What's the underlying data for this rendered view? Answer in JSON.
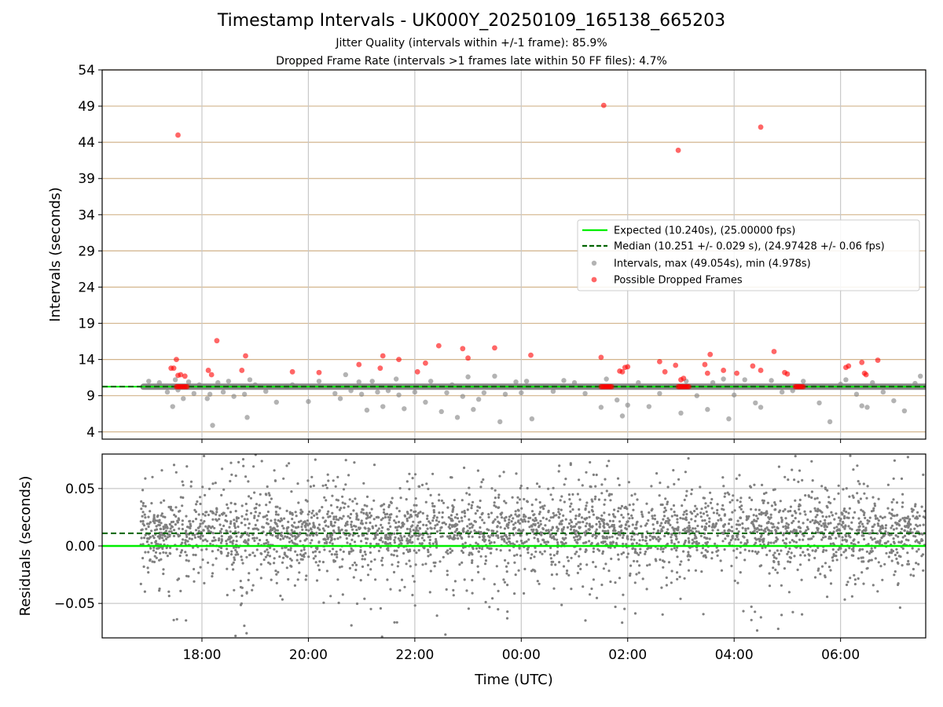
{
  "title": "Timestamp Intervals - UK000Y_20250109_165138_665203",
  "subtitle_1": "Jitter Quality (intervals within +/-1 frame): 85.9%",
  "subtitle_2": "Dropped Frame Rate (intervals >1 frames late within 50 FF files): 4.7%",
  "colors": {
    "expected": "#00ee00",
    "median": "#006400",
    "intervals": "#808080",
    "dropped": "#ff0000",
    "hgrid": "#d2b48c",
    "vgrid": "#c8c8c8"
  },
  "chart_data": [
    {
      "type": "scatter",
      "ylabel": "Intervals (seconds)",
      "xlabel": "",
      "ylim": [
        3,
        54
      ],
      "yticks": [
        4,
        9,
        14,
        19,
        24,
        29,
        34,
        39,
        44,
        49,
        54
      ],
      "xlim_hours": [
        16.125,
        31.6
      ],
      "xticks": [
        {
          "hour": 18,
          "label": "18:00"
        },
        {
          "hour": 20,
          "label": "20:00"
        },
        {
          "hour": 22,
          "label": "22:00"
        },
        {
          "hour": 24,
          "label": "00:00"
        },
        {
          "hour": 26,
          "label": "02:00"
        },
        {
          "hour": 28,
          "label": "04:00"
        },
        {
          "hour": 30,
          "label": "06:00"
        }
      ],
      "grid": true,
      "legend_position": "center-right",
      "legend": [
        {
          "label": "Expected (10.240s), (25.00000 fps)",
          "kind": "line-solid"
        },
        {
          "label": "Median (10.251 +/- 0.029 s), (24.97428 +/- 0.06 fps)",
          "kind": "line-dashed"
        },
        {
          "label": "Intervals, max (49.054s), min (4.978s)",
          "kind": "marker-gray"
        },
        {
          "label": "Possible Dropped Frames",
          "kind": "marker-red"
        }
      ],
      "expected": 10.24,
      "median": 10.251,
      "series": [
        {
          "name": "Intervals, max (49.054s), min (4.978s)",
          "x": [
            17.0,
            17.2,
            17.35,
            17.45,
            17.5,
            17.55,
            17.65,
            17.75,
            17.85,
            17.95,
            18.05,
            18.1,
            18.15,
            18.2,
            18.3,
            18.4,
            18.5,
            18.6,
            18.8,
            18.85,
            18.9,
            19.0,
            19.2,
            19.4,
            19.6,
            19.7,
            20.0,
            20.2,
            20.5,
            20.6,
            20.7,
            20.8,
            20.95,
            21.0,
            21.1,
            21.2,
            21.3,
            21.4,
            21.5,
            21.65,
            21.7,
            21.8,
            22.0,
            22.2,
            22.3,
            22.5,
            22.6,
            22.7,
            22.8,
            22.9,
            23.0,
            23.1,
            23.2,
            23.3,
            23.5,
            23.6,
            23.7,
            23.9,
            24.0,
            24.1,
            24.2,
            24.4,
            24.6,
            24.8,
            25.0,
            25.2,
            25.5,
            25.6,
            25.8,
            25.9,
            26.0,
            26.2,
            26.4,
            26.6,
            26.8,
            27.0,
            27.1,
            27.3,
            27.5,
            27.6,
            27.8,
            27.9,
            28.0,
            28.2,
            28.4,
            28.5,
            28.7,
            28.9,
            29.1,
            29.3,
            29.5,
            29.6,
            29.8,
            30.0,
            30.1,
            30.3,
            30.4,
            30.5,
            30.6,
            30.8,
            31.0,
            31.2,
            31.4,
            31.5
          ],
          "y": [
            11.0,
            10.8,
            9.5,
            7.5,
            11.2,
            9.8,
            8.6,
            10.9,
            9.3,
            10.5,
            10.2,
            8.6,
            9.2,
            4.9,
            10.8,
            9.5,
            11.0,
            8.9,
            9.2,
            6.0,
            11.2,
            10.5,
            9.6,
            8.1,
            10.2,
            10.5,
            8.2,
            11.0,
            9.3,
            8.6,
            11.9,
            9.7,
            10.9,
            9.2,
            7.0,
            11.0,
            9.5,
            7.5,
            9.7,
            11.3,
            9.1,
            7.2,
            9.5,
            8.1,
            11.0,
            6.8,
            9.4,
            10.5,
            6.0,
            8.9,
            11.6,
            7.1,
            8.5,
            9.4,
            11.7,
            5.4,
            9.2,
            10.9,
            9.4,
            11.0,
            5.8,
            10.2,
            9.6,
            11.1,
            10.8,
            9.3,
            7.4,
            11.3,
            8.4,
            6.2,
            7.7,
            10.8,
            7.5,
            9.3,
            10.3,
            6.6,
            11.0,
            9.0,
            7.1,
            10.8,
            11.3,
            5.8,
            9.1,
            11.2,
            8.0,
            7.4,
            11.1,
            9.5,
            9.7,
            11.0,
            10.2,
            8.0,
            5.4,
            10.6,
            11.2,
            9.2,
            7.6,
            7.4,
            10.8,
            9.5,
            8.3,
            6.9,
            10.7,
            11.7
          ]
        },
        {
          "name": "Possible Dropped Frames",
          "x": [
            17.42,
            17.47,
            17.52,
            17.6,
            17.68,
            17.55,
            18.12,
            18.18,
            18.28,
            18.75,
            18.82,
            19.7,
            20.2,
            20.95,
            21.35,
            21.4,
            21.7,
            22.05,
            22.2,
            22.45,
            22.9,
            23.0,
            23.5,
            24.18,
            25.5,
            25.9,
            25.95,
            26.0,
            25.85,
            26.6,
            26.7,
            26.9,
            27.0,
            27.05,
            27.45,
            27.5,
            27.55,
            27.8,
            28.05,
            28.35,
            28.5,
            28.75,
            28.95,
            29.0,
            30.1,
            30.15,
            30.4,
            30.45,
            30.48,
            30.7,
            25.55,
            26.95,
            28.5,
            17.55
          ],
          "y": [
            12.8,
            12.8,
            14.0,
            11.9,
            11.7,
            11.8,
            12.5,
            11.9,
            16.6,
            12.5,
            14.5,
            12.3,
            12.2,
            13.3,
            12.8,
            14.5,
            14.0,
            12.3,
            13.5,
            15.9,
            15.5,
            14.2,
            15.6,
            14.6,
            14.3,
            12.3,
            12.9,
            13.0,
            12.4,
            13.7,
            12.3,
            13.2,
            11.2,
            11.4,
            13.3,
            12.1,
            14.7,
            12.5,
            12.1,
            13.1,
            12.5,
            15.1,
            12.2,
            12.0,
            12.9,
            13.1,
            13.6,
            12.1,
            11.9,
            13.9,
            49.1,
            42.9,
            46.1,
            45.0
          ]
        }
      ],
      "dropped_clusters": [
        {
          "x_start": 17.52,
          "x_end": 17.72
        },
        {
          "x_start": 25.5,
          "x_end": 25.7
        },
        {
          "x_start": 26.95,
          "x_end": 27.17
        },
        {
          "x_start": 29.15,
          "x_end": 29.32
        }
      ],
      "baseline_band": {
        "x_start": 16.9,
        "x_end": 31.6,
        "y": 10.24
      }
    },
    {
      "type": "scatter",
      "ylabel": "Residuals (seconds)",
      "xlabel": "Time (UTC)",
      "ylim": [
        -0.08,
        0.08
      ],
      "yticks": [
        {
          "value": 0.05,
          "label": "0.05"
        },
        {
          "value": 0.0,
          "label": "0.00"
        },
        {
          "value": -0.05,
          "label": "−0.05"
        }
      ],
      "xlim_hours": [
        16.125,
        31.6
      ],
      "xticks": [
        {
          "hour": 18,
          "label": "18:00"
        },
        {
          "hour": 20,
          "label": "20:00"
        },
        {
          "hour": 22,
          "label": "22:00"
        },
        {
          "hour": 24,
          "label": "00:00"
        },
        {
          "hour": 26,
          "label": "02:00"
        },
        {
          "hour": 28,
          "label": "04:00"
        },
        {
          "hour": 30,
          "label": "06:00"
        }
      ],
      "grid": true,
      "expected": 0.0,
      "median": 0.011,
      "residual_cloud": {
        "x_start": 16.85,
        "x_end": 31.6,
        "count": 3400,
        "center": 0.012,
        "spread": 0.024,
        "clip": 0.08
      }
    }
  ]
}
